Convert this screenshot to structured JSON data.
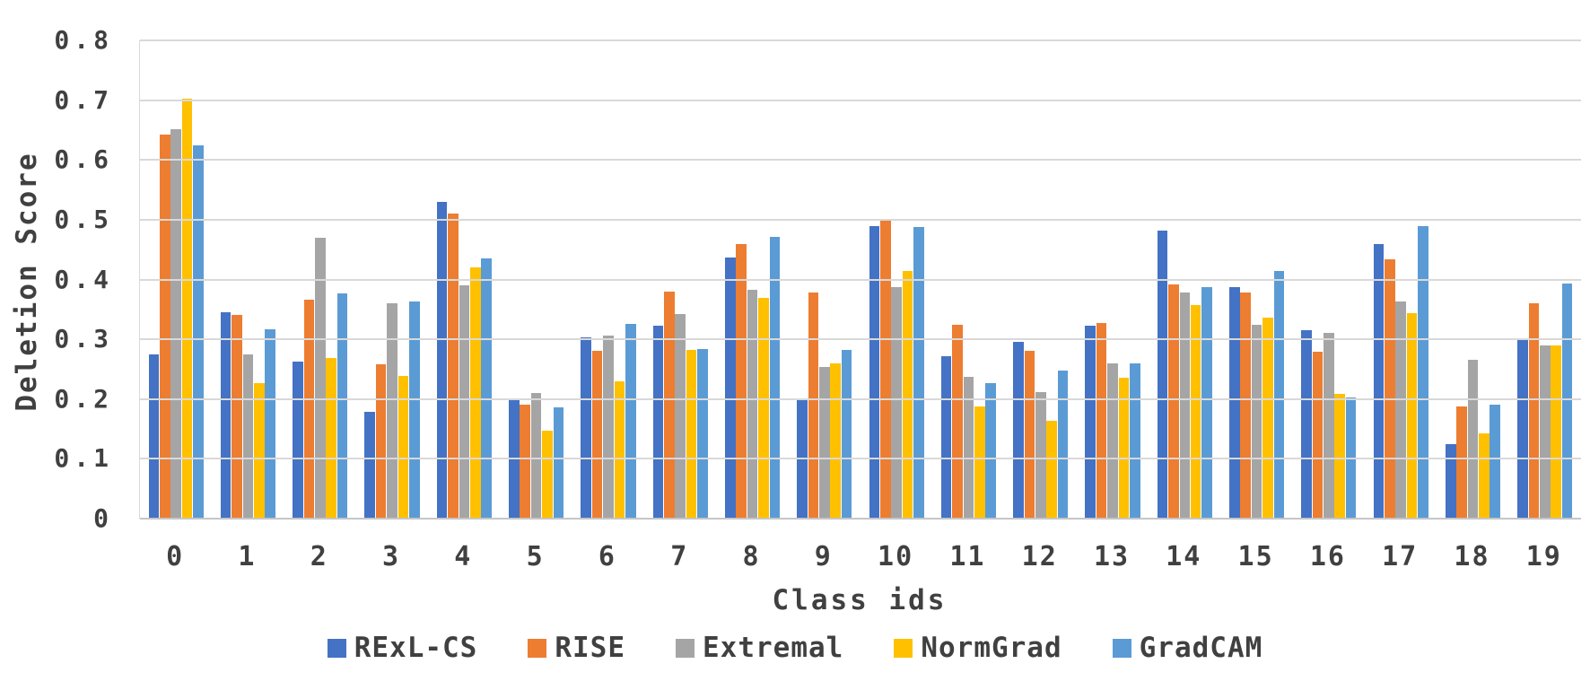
{
  "chart_data": {
    "type": "bar",
    "title": "",
    "xlabel": "Class ids",
    "ylabel": "Deletion Score",
    "categories": [
      "0",
      "1",
      "2",
      "3",
      "4",
      "5",
      "6",
      "7",
      "8",
      "9",
      "10",
      "11",
      "12",
      "13",
      "14",
      "15",
      "16",
      "17",
      "18",
      "19"
    ],
    "series": [
      {
        "name": "RExL-CS",
        "color": "#4472C4",
        "values": [
          0.275,
          0.345,
          0.262,
          0.179,
          0.53,
          0.2,
          0.303,
          0.322,
          0.437,
          0.2,
          0.49,
          0.272,
          0.295,
          0.323,
          0.482,
          0.388,
          0.315,
          0.46,
          0.125,
          0.298
        ]
      },
      {
        "name": "RISE",
        "color": "#ED7D31",
        "values": [
          0.643,
          0.341,
          0.366,
          0.258,
          0.51,
          0.191,
          0.281,
          0.38,
          0.46,
          0.378,
          0.5,
          0.324,
          0.281,
          0.327,
          0.392,
          0.378,
          0.279,
          0.434,
          0.187,
          0.36
        ]
      },
      {
        "name": "Extremal",
        "color": "#A5A5A5",
        "values": [
          0.652,
          0.274,
          0.47,
          0.36,
          0.391,
          0.21,
          0.306,
          0.342,
          0.383,
          0.254,
          0.388,
          0.237,
          0.211,
          0.259,
          0.378,
          0.324,
          0.311,
          0.363,
          0.265,
          0.289
        ]
      },
      {
        "name": "NormGrad",
        "color": "#FFC000",
        "values": [
          0.702,
          0.226,
          0.268,
          0.238,
          0.42,
          0.147,
          0.229,
          0.282,
          0.37,
          0.26,
          0.414,
          0.188,
          0.163,
          0.236,
          0.357,
          0.336,
          0.208,
          0.344,
          0.143,
          0.29
        ]
      },
      {
        "name": "GradCAM",
        "color": "#5B9BD5",
        "values": [
          0.625,
          0.317,
          0.377,
          0.363,
          0.435,
          0.186,
          0.326,
          0.283,
          0.472,
          0.282,
          0.488,
          0.227,
          0.247,
          0.259,
          0.388,
          0.414,
          0.203,
          0.489,
          0.19,
          0.393
        ]
      }
    ],
    "ylim": [
      0,
      0.8
    ],
    "ytick_step": 0.1,
    "ytick_labels": [
      "0",
      "0.1",
      "0.2",
      "0.3",
      "0.4",
      "0.5",
      "0.6",
      "0.7",
      "0.8"
    ],
    "grid": true,
    "legend_position": "bottom"
  },
  "colors": {
    "text": "#404040",
    "gridline": "#d9d9d9",
    "axis_line": "#c6c6c6",
    "background": "#ffffff"
  }
}
